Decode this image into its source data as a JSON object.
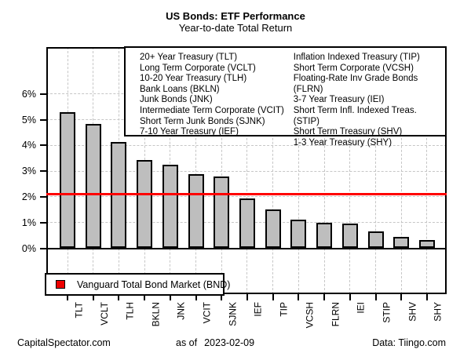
{
  "title": "US Bonds: ETF Performance",
  "subtitle": "Year-to-date Total Return",
  "etf_legend": {
    "left_column": [
      "20+ Year Treasury (TLT)",
      "Long Term Corporate (VCLT)",
      "10-20 Year Treasury (TLH)",
      "Bank Loans (BKLN)",
      "Junk Bonds (JNK)",
      "Intermediate Term Corporate (VCIT)",
      "Short Term Junk Bonds (SJNK)",
      "7-10 Year Treasury (IEF)"
    ],
    "right_column": [
      "Inflation Indexed Treasury (TIP)",
      "Short Term Corporate (VCSH)",
      "Floating-Rate Inv Grade Bonds (FLRN)",
      "3-7 Year Treasury (IEI)",
      "Short Term Infl. Indexed Treas. (STIP)",
      "Short Term Treasury (SHV)",
      "1-3 Year Treasury (SHY)"
    ]
  },
  "bnd_legend": {
    "label": "Vanguard Total Bond Market (BND)",
    "swatch_color": "#ee0000"
  },
  "footer": {
    "left": "CapitalSpectator.com",
    "as_of_label": "as of",
    "as_of_date": "2023-02-09",
    "right": "Data: Tiingo.com"
  },
  "colors": {
    "bar_fill": "#bebebe",
    "bar_border": "#000000",
    "reference_line": "#ff0000",
    "grid": "#c6c6c6",
    "background": "#ffffff"
  },
  "chart_data": {
    "type": "bar",
    "title": "US Bonds: ETF Performance",
    "subtitle": "Year-to-date Total Return",
    "unit": "%",
    "categories": [
      "TLT",
      "VCLT",
      "TLH",
      "BKLN",
      "JNK",
      "VCIT",
      "SJNK",
      "IEF",
      "TIP",
      "VCSH",
      "FLRN",
      "IEI",
      "STIP",
      "SHV",
      "SHY"
    ],
    "values": [
      5.3,
      4.82,
      4.13,
      3.43,
      3.25,
      2.88,
      2.79,
      1.94,
      1.52,
      1.11,
      1.0,
      0.97,
      0.66,
      0.45,
      0.33
    ],
    "yticks": [
      0,
      1,
      2,
      3,
      4,
      5,
      6
    ],
    "ytick_labels": [
      "0%",
      "1%",
      "2%",
      "3%",
      "4%",
      "5%",
      "6%"
    ],
    "ylim": [
      -1.8,
      7.8
    ],
    "grid": true,
    "xlabel": "",
    "ylabel": "",
    "reference_line": {
      "label": "Vanguard Total Bond Market (BND)",
      "value": 2.1,
      "color": "#ff0000"
    },
    "legend_position": "top-right"
  }
}
